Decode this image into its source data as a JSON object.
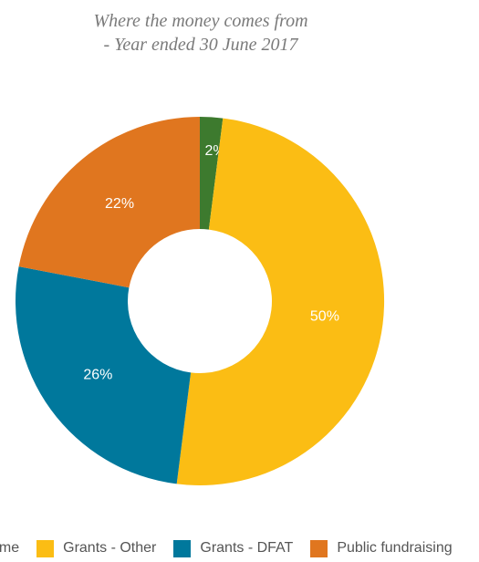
{
  "title": {
    "line1": "Where the money comes from",
    "line2": "- Year ended 30 June 2017"
  },
  "chart_data": {
    "type": "pie",
    "donut": true,
    "title": "Where the money comes from - Year ended 30 June 2017",
    "start_angle_deg": 0,
    "direction": "clockwise",
    "slices": [
      {
        "name": "Other income",
        "value": 2,
        "label": "2%",
        "color": "#3d7a2e"
      },
      {
        "name": "Grants - Other",
        "value": 50,
        "label": "50%",
        "color": "#fbbd14"
      },
      {
        "name": "Grants - DFAT",
        "value": 26,
        "label": "26%",
        "color": "#00789c"
      },
      {
        "name": "Public fundraising",
        "value": 22,
        "label": "22%",
        "color": "#e0761f"
      }
    ],
    "label_color": "#ffffff",
    "legend_position": "bottom"
  },
  "legend": {
    "items": [
      {
        "label": "come",
        "color": "#3d7a2e"
      },
      {
        "label": "Grants - Other",
        "color": "#fbbd14"
      },
      {
        "label": "Grants - DFAT",
        "color": "#00789c"
      },
      {
        "label": "Public fundraising",
        "color": "#e0761f"
      }
    ]
  }
}
